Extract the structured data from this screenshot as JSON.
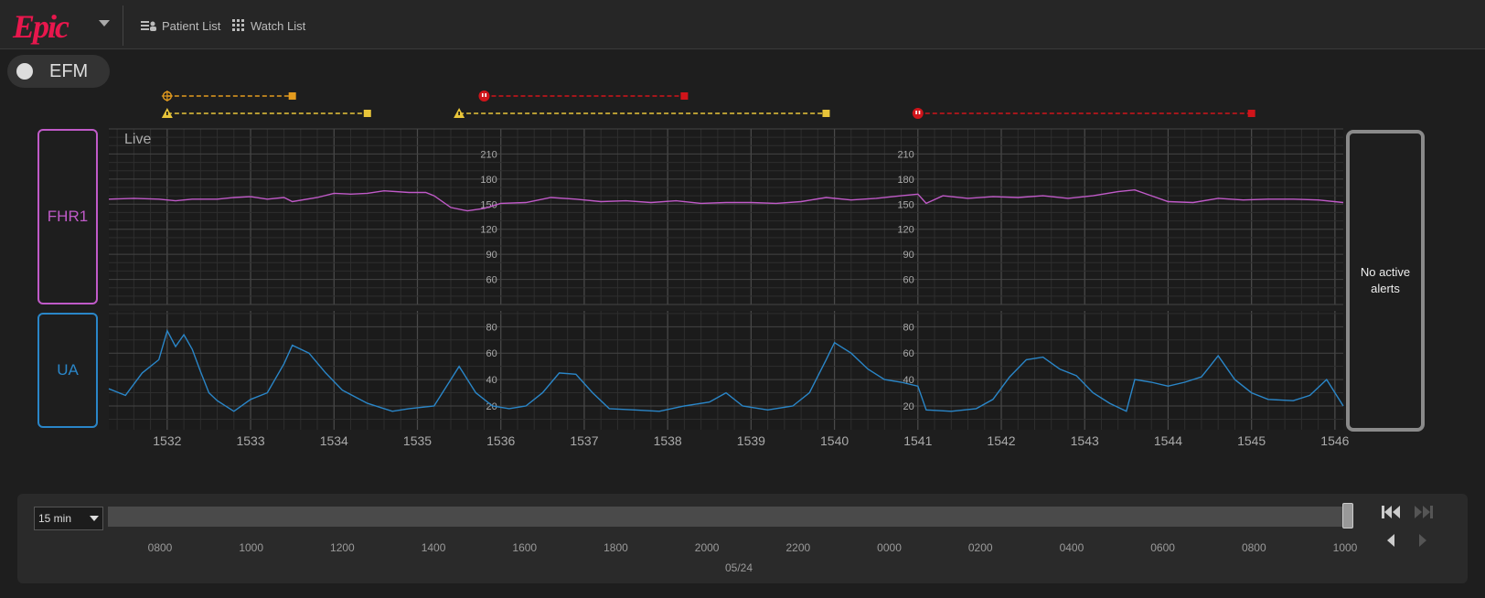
{
  "app": {
    "logo_text": "Epic",
    "brand_color": "#e8174d"
  },
  "nav": [
    {
      "label": "Patient List",
      "icon": "patient-list-icon"
    },
    {
      "label": "Watch List",
      "icon": "watch-list-icon"
    }
  ],
  "efm": {
    "label": "EFM"
  },
  "channels": {
    "fhr_label": "FHR1",
    "ua_label": "UA",
    "fhr_color": "#c05ac8",
    "ua_color": "#2a86c8"
  },
  "alerts": {
    "message": "No active alerts"
  },
  "chart_data": {
    "type": "line",
    "live_label": "Live",
    "x_ticks": [
      "1532",
      "1533",
      "1534",
      "1535",
      "1536",
      "1537",
      "1538",
      "1539",
      "1540",
      "1541",
      "1542",
      "1543",
      "1544",
      "1545",
      "1546"
    ],
    "x_range": [
      1531.3,
      1546.1
    ],
    "fhr": {
      "name": "FHR1",
      "scale_labels": [
        210,
        180,
        150,
        120,
        90,
        60
      ],
      "ylim": [
        30,
        240
      ],
      "points": [
        [
          1531.3,
          156
        ],
        [
          1531.6,
          157
        ],
        [
          1531.9,
          156
        ],
        [
          1532.1,
          154
        ],
        [
          1532.3,
          156
        ],
        [
          1532.6,
          156
        ],
        [
          1532.8,
          158
        ],
        [
          1533.0,
          159
        ],
        [
          1533.2,
          156
        ],
        [
          1533.4,
          158
        ],
        [
          1533.5,
          153
        ],
        [
          1533.8,
          158
        ],
        [
          1534.0,
          163
        ],
        [
          1534.2,
          162
        ],
        [
          1534.4,
          163
        ],
        [
          1534.6,
          166
        ],
        [
          1534.9,
          164
        ],
        [
          1535.1,
          164
        ],
        [
          1535.2,
          160
        ],
        [
          1535.4,
          146
        ],
        [
          1535.6,
          142
        ],
        [
          1535.8,
          145
        ],
        [
          1536.0,
          151
        ],
        [
          1536.3,
          152
        ],
        [
          1536.6,
          158
        ],
        [
          1536.9,
          156
        ],
        [
          1537.2,
          153
        ],
        [
          1537.5,
          154
        ],
        [
          1537.8,
          152
        ],
        [
          1538.1,
          154
        ],
        [
          1538.4,
          151
        ],
        [
          1538.7,
          152
        ],
        [
          1539.0,
          152
        ],
        [
          1539.3,
          151
        ],
        [
          1539.6,
          153
        ],
        [
          1539.9,
          158
        ],
        [
          1540.2,
          155
        ],
        [
          1540.5,
          157
        ],
        [
          1540.8,
          160
        ],
        [
          1541.0,
          162
        ],
        [
          1541.1,
          151
        ],
        [
          1541.3,
          160
        ],
        [
          1541.6,
          157
        ],
        [
          1541.9,
          159
        ],
        [
          1542.2,
          158
        ],
        [
          1542.5,
          160
        ],
        [
          1542.8,
          157
        ],
        [
          1543.1,
          160
        ],
        [
          1543.4,
          165
        ],
        [
          1543.6,
          167
        ],
        [
          1543.8,
          160
        ],
        [
          1544.0,
          153
        ],
        [
          1544.3,
          152
        ],
        [
          1544.6,
          157
        ],
        [
          1544.9,
          155
        ],
        [
          1545.2,
          156
        ],
        [
          1545.5,
          156
        ],
        [
          1545.8,
          155
        ],
        [
          1546.1,
          152
        ]
      ]
    },
    "ua": {
      "name": "UA",
      "scale_labels": [
        80,
        60,
        40,
        20
      ],
      "ylim": [
        2,
        92
      ],
      "points": [
        [
          1531.3,
          33
        ],
        [
          1531.5,
          28
        ],
        [
          1531.7,
          45
        ],
        [
          1531.9,
          55
        ],
        [
          1532.0,
          77
        ],
        [
          1532.1,
          65
        ],
        [
          1532.2,
          74
        ],
        [
          1532.3,
          63
        ],
        [
          1532.4,
          46
        ],
        [
          1532.5,
          30
        ],
        [
          1532.6,
          24
        ],
        [
          1532.8,
          16
        ],
        [
          1533.0,
          25
        ],
        [
          1533.2,
          30
        ],
        [
          1533.4,
          52
        ],
        [
          1533.5,
          66
        ],
        [
          1533.7,
          60
        ],
        [
          1533.9,
          45
        ],
        [
          1534.1,
          32
        ],
        [
          1534.4,
          22
        ],
        [
          1534.7,
          16
        ],
        [
          1534.9,
          18
        ],
        [
          1535.2,
          20
        ],
        [
          1535.4,
          40
        ],
        [
          1535.5,
          50
        ],
        [
          1535.7,
          30
        ],
        [
          1535.9,
          20
        ],
        [
          1536.1,
          18
        ],
        [
          1536.3,
          20
        ],
        [
          1536.5,
          30
        ],
        [
          1536.7,
          45
        ],
        [
          1536.9,
          44
        ],
        [
          1537.1,
          30
        ],
        [
          1537.3,
          18
        ],
        [
          1537.6,
          17
        ],
        [
          1537.9,
          16
        ],
        [
          1538.2,
          20
        ],
        [
          1538.5,
          23
        ],
        [
          1538.7,
          30
        ],
        [
          1538.9,
          20
        ],
        [
          1539.2,
          17
        ],
        [
          1539.5,
          20
        ],
        [
          1539.7,
          30
        ],
        [
          1539.9,
          55
        ],
        [
          1540.0,
          68
        ],
        [
          1540.2,
          60
        ],
        [
          1540.4,
          48
        ],
        [
          1540.6,
          40
        ],
        [
          1540.8,
          38
        ],
        [
          1541.0,
          35
        ],
        [
          1541.1,
          17
        ],
        [
          1541.4,
          16
        ],
        [
          1541.7,
          18
        ],
        [
          1541.9,
          25
        ],
        [
          1542.1,
          42
        ],
        [
          1542.3,
          55
        ],
        [
          1542.5,
          57
        ],
        [
          1542.7,
          48
        ],
        [
          1542.9,
          43
        ],
        [
          1543.1,
          30
        ],
        [
          1543.3,
          22
        ],
        [
          1543.5,
          16
        ],
        [
          1543.6,
          40
        ],
        [
          1543.8,
          38
        ],
        [
          1544.0,
          35
        ],
        [
          1544.2,
          38
        ],
        [
          1544.4,
          42
        ],
        [
          1544.5,
          50
        ],
        [
          1544.6,
          58
        ],
        [
          1544.8,
          40
        ],
        [
          1545.0,
          30
        ],
        [
          1545.2,
          25
        ],
        [
          1545.5,
          24
        ],
        [
          1545.7,
          28
        ],
        [
          1545.9,
          40
        ],
        [
          1546.1,
          20
        ]
      ]
    }
  },
  "alert_bars": [
    {
      "row": 1,
      "start": 1532.0,
      "end": 1533.5,
      "color": "#e39b1e",
      "icon": "crosshair-icon"
    },
    {
      "row": 2,
      "start": 1532.0,
      "end": 1534.4,
      "color": "#e8c53a",
      "icon": "warning-icon"
    },
    {
      "row": 1,
      "start": 1535.8,
      "end": 1538.2,
      "color": "#d0141a",
      "icon": "critical-icon"
    },
    {
      "row": 2,
      "start": 1535.5,
      "end": 1539.9,
      "color": "#e8c53a",
      "icon": "warning-icon"
    },
    {
      "row": 2,
      "start": 1541.0,
      "end": 1545.0,
      "color": "#d0141a",
      "icon": "critical-icon"
    }
  ],
  "timeline": {
    "range_label": "15 min",
    "ticks": [
      "0800",
      "1000",
      "1200",
      "1400",
      "1600",
      "1800",
      "2000",
      "2200",
      "0000",
      "0200",
      "0400",
      "0600",
      "0800",
      "1000"
    ],
    "date_label": "05/24"
  }
}
